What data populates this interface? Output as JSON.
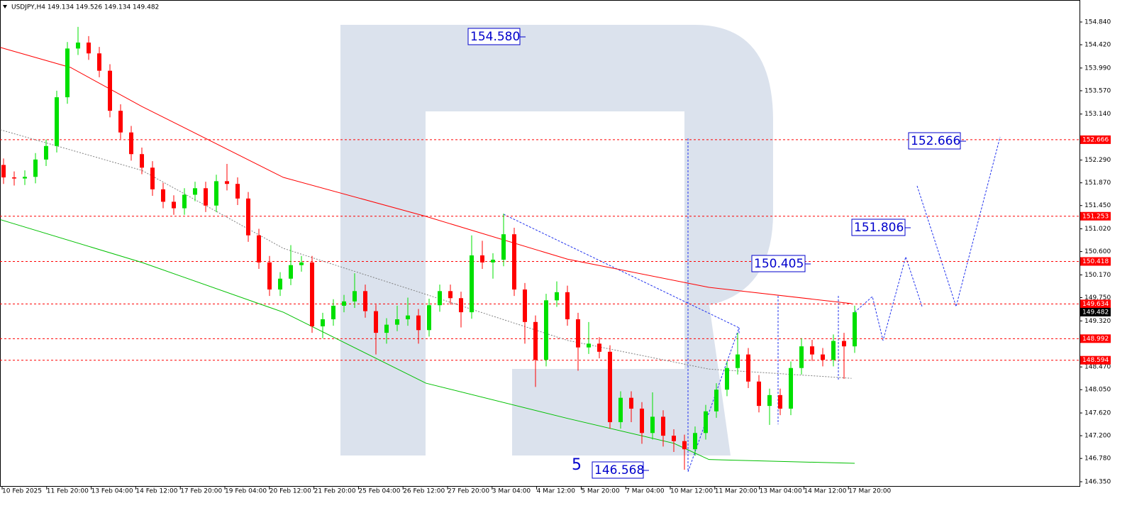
{
  "chart_data": {
    "type": "candlestick",
    "title": "USDJPY,H4  149.134 149.526 149.134 149.482",
    "x_labels": [
      "10 Feb 2025",
      "11 Feb 20:00",
      "13 Feb 04:00",
      "14 Feb 12:00",
      "17 Feb 20:00",
      "19 Feb 04:00",
      "20 Feb 12:00",
      "21 Feb 20:00",
      "25 Feb 04:00",
      "26 Feb 12:00",
      "27 Feb 20:00",
      "3 Mar 04:00",
      "4 Mar 12:00",
      "5 Mar 20:00",
      "7 Mar 04:00",
      "10 Mar 12:00",
      "11 Mar 20:00",
      "13 Mar 04:00",
      "14 Mar 12:00",
      "17 Mar 20:00"
    ],
    "up_color": "#00e000",
    "down_color": "#ff0000",
    "ohlc": [
      [
        152.2,
        152.32,
        151.85,
        151.97
      ],
      [
        151.97,
        152.08,
        151.82,
        151.95
      ],
      [
        151.95,
        152.1,
        151.83,
        151.98
      ],
      [
        151.98,
        152.42,
        151.86,
        152.3
      ],
      [
        152.3,
        152.67,
        152.18,
        152.55
      ],
      [
        152.55,
        153.57,
        152.43,
        153.45
      ],
      [
        153.45,
        154.47,
        153.33,
        154.35
      ],
      [
        154.35,
        154.75,
        154.23,
        154.46
      ],
      [
        154.46,
        154.58,
        154.14,
        154.26
      ],
      [
        154.26,
        154.38,
        153.82,
        153.94
      ],
      [
        153.94,
        154.06,
        153.08,
        153.2
      ],
      [
        153.2,
        153.32,
        152.68,
        152.8
      ],
      [
        152.8,
        152.92,
        152.28,
        152.4
      ],
      [
        152.4,
        152.52,
        152.03,
        152.15
      ],
      [
        152.15,
        152.27,
        151.63,
        151.75
      ],
      [
        151.75,
        151.87,
        151.4,
        151.52
      ],
      [
        151.52,
        151.64,
        151.28,
        151.4
      ],
      [
        151.4,
        151.77,
        151.28,
        151.65
      ],
      [
        151.65,
        151.89,
        151.53,
        151.77
      ],
      [
        151.77,
        151.89,
        151.33,
        151.45
      ],
      [
        151.45,
        152.02,
        151.33,
        151.9
      ],
      [
        151.9,
        152.22,
        151.73,
        151.85
      ],
      [
        151.85,
        151.97,
        151.46,
        151.58
      ],
      [
        151.58,
        151.7,
        150.78,
        150.9
      ],
      [
        150.9,
        151.02,
        150.28,
        150.4
      ],
      [
        150.4,
        150.52,
        149.78,
        149.9
      ],
      [
        149.9,
        150.22,
        149.78,
        150.1
      ],
      [
        150.1,
        150.72,
        149.98,
        150.35
      ],
      [
        150.35,
        150.52,
        150.23,
        150.4
      ],
      [
        150.4,
        150.52,
        149.1,
        149.22
      ],
      [
        149.22,
        149.47,
        149.0,
        149.35
      ],
      [
        149.35,
        149.72,
        149.23,
        149.6
      ],
      [
        149.6,
        149.8,
        149.48,
        149.68
      ],
      [
        149.68,
        150.2,
        149.56,
        149.87
      ],
      [
        149.87,
        149.99,
        149.38,
        149.5
      ],
      [
        149.5,
        149.62,
        148.7,
        149.1
      ],
      [
        149.1,
        149.37,
        148.9,
        149.25
      ],
      [
        149.25,
        149.6,
        149.13,
        149.35
      ],
      [
        149.35,
        149.75,
        149.23,
        149.42
      ],
      [
        149.42,
        149.54,
        148.9,
        149.15
      ],
      [
        149.15,
        149.73,
        149.03,
        149.61
      ],
      [
        149.61,
        149.99,
        149.49,
        149.87
      ],
      [
        149.87,
        149.99,
        149.62,
        149.74
      ],
      [
        149.74,
        149.86,
        149.2,
        149.48
      ],
      [
        149.48,
        150.9,
        149.36,
        150.53
      ],
      [
        150.53,
        150.8,
        150.28,
        150.4
      ],
      [
        150.4,
        150.57,
        150.1,
        150.45
      ],
      [
        150.45,
        151.3,
        150.33,
        150.92
      ],
      [
        150.92,
        151.04,
        149.78,
        149.9
      ],
      [
        149.9,
        150.02,
        148.9,
        149.3
      ],
      [
        149.3,
        149.42,
        148.1,
        148.6
      ],
      [
        148.6,
        149.82,
        148.48,
        149.7
      ],
      [
        149.7,
        150.05,
        149.58,
        149.85
      ],
      [
        149.85,
        149.97,
        149.23,
        149.35
      ],
      [
        149.35,
        149.47,
        148.4,
        148.83
      ],
      [
        148.83,
        149.3,
        148.71,
        148.9
      ],
      [
        148.9,
        149.02,
        148.63,
        148.75
      ],
      [
        148.75,
        148.87,
        147.33,
        147.45
      ],
      [
        147.45,
        148.02,
        147.33,
        147.9
      ],
      [
        147.9,
        148.02,
        147.45,
        147.7
      ],
      [
        147.7,
        147.82,
        147.05,
        147.25
      ],
      [
        147.25,
        148.0,
        147.13,
        147.55
      ],
      [
        147.55,
        147.67,
        147.0,
        147.2
      ],
      [
        147.2,
        147.32,
        146.9,
        147.1
      ],
      [
        147.1,
        147.22,
        146.57,
        146.95
      ],
      [
        146.95,
        147.37,
        146.83,
        147.25
      ],
      [
        147.25,
        147.77,
        147.13,
        147.65
      ],
      [
        147.65,
        148.17,
        147.53,
        148.05
      ],
      [
        148.05,
        148.57,
        147.93,
        148.45
      ],
      [
        148.45,
        149.1,
        148.33,
        148.7
      ],
      [
        148.7,
        148.82,
        148.08,
        148.2
      ],
      [
        148.2,
        148.32,
        147.63,
        147.75
      ],
      [
        147.75,
        148.07,
        147.4,
        147.95
      ],
      [
        147.95,
        148.07,
        147.58,
        147.7
      ],
      [
        147.7,
        148.57,
        147.58,
        148.45
      ],
      [
        148.45,
        149.0,
        148.33,
        148.85
      ],
      [
        148.85,
        148.97,
        148.58,
        148.7
      ],
      [
        148.7,
        148.82,
        148.48,
        148.6
      ],
      [
        148.6,
        149.07,
        148.48,
        148.95
      ],
      [
        148.95,
        149.1,
        148.25,
        148.85
      ],
      [
        148.85,
        149.6,
        148.73,
        149.48
      ]
    ],
    "indicators": [
      {
        "color": "#ff0000",
        "x": [
          -0.3,
          6.3,
          13,
          26.3,
          39.7,
          53,
          66.3,
          79.7
        ],
        "values": [
          154.37,
          154.0,
          153.28,
          151.97,
          151.25,
          150.46,
          149.94,
          149.64
        ]
      },
      {
        "color": "#00c000",
        "x": [
          -0.3,
          13,
          26.3,
          39.7,
          53,
          63,
          66.3,
          80
        ],
        "values": [
          151.19,
          150.4,
          149.48,
          148.17,
          147.52,
          147.06,
          146.76,
          146.69
        ]
      },
      {
        "color": "#808080",
        "x": [
          -0.3,
          13,
          26.3,
          39.7,
          53,
          66.3,
          79.7
        ],
        "values": [
          152.85,
          152.1,
          150.66,
          149.81,
          148.96,
          148.43,
          148.26
        ]
      }
    ],
    "ylim": [
      146.258,
      155.246
    ],
    "yticks": [
      {
        "value": 154.84,
        "label": "154.840"
      },
      {
        "value": 154.42,
        "label": "154.420"
      },
      {
        "value": 153.99,
        "label": "153.990"
      },
      {
        "value": 153.57,
        "label": "153.570"
      },
      {
        "value": 153.14,
        "label": "153.140"
      },
      {
        "value": 152.29,
        "label": "152.290"
      },
      {
        "value": 151.87,
        "label": "151.870"
      },
      {
        "value": 151.45,
        "label": "151.450"
      },
      {
        "value": 151.02,
        "label": "151.020"
      },
      {
        "value": 150.6,
        "label": "150.600"
      },
      {
        "value": 150.17,
        "label": "150.170"
      },
      {
        "value": 149.75,
        "label": "149.750"
      },
      {
        "value": 149.32,
        "label": "149.320"
      },
      {
        "value": 148.47,
        "label": "148.470"
      },
      {
        "value": 148.05,
        "label": "148.050"
      },
      {
        "value": 147.62,
        "label": "147.620"
      },
      {
        "value": 147.2,
        "label": "147.200"
      },
      {
        "value": 146.78,
        "label": "146.780"
      },
      {
        "value": 146.35,
        "label": "146.350"
      }
    ],
    "levels": {
      "color": "#ff0000",
      "values": [
        152.666,
        151.253,
        150.418,
        149.634,
        148.992,
        148.594
      ]
    },
    "current_price": 149.482,
    "annotations": [
      "154.580",
      "152.666",
      "151.806",
      "150.405",
      "146.568",
      "5"
    ]
  }
}
